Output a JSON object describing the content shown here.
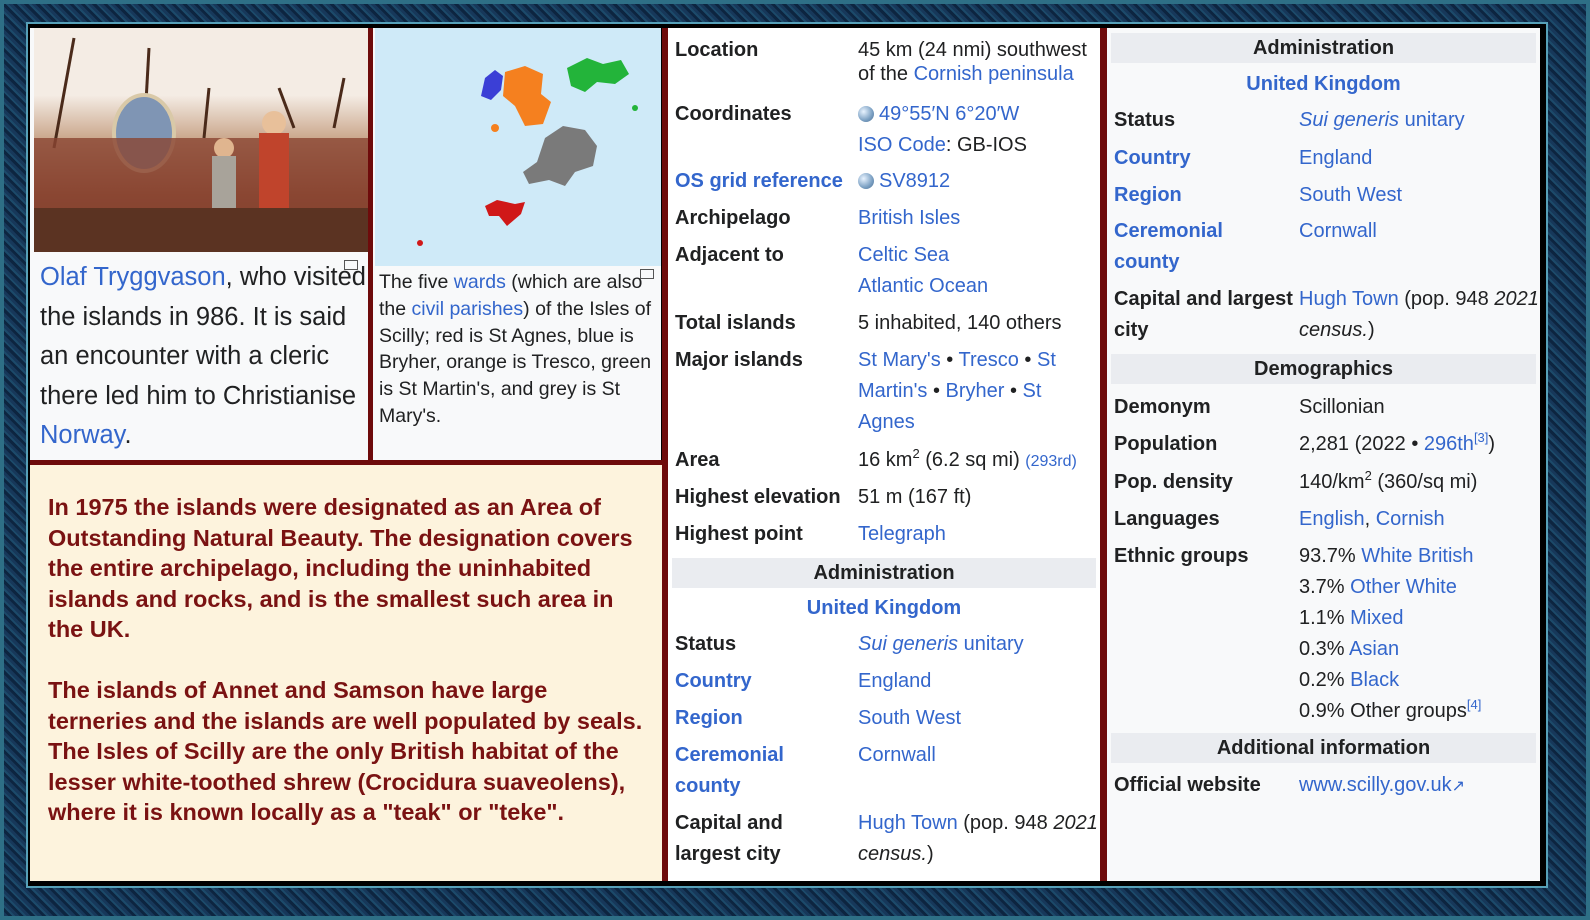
{
  "caption_left": [
    {
      "t": "Olaf Tryggvason",
      "link": true
    },
    {
      "t": ", who visited the islands in 986. It is said an encounter with a cleric there led him to Christianise "
    },
    {
      "t": "Norway",
      "link": true
    },
    {
      "t": "."
    }
  ],
  "caption_map": [
    {
      "t": "The five "
    },
    {
      "t": "wards",
      "link": true
    },
    {
      "t": " (which are also the "
    },
    {
      "t": "civil parishes",
      "link": true
    },
    {
      "t": ") of the Isles of Scilly; red is St Agnes, blue is Bryher, orange is Tresco, green is St Martin's, and grey is St Mary's."
    }
  ],
  "text_box": {
    "paragraphs": [
      "In 1975 the islands were designated as an Area of Outstanding Natural Beauty. The designation covers the entire archipelago, including the uninhabited islands and rocks, and is the smallest such area in the UK.",
      "The islands of Annet and Samson have large terneries and the islands are well populated by seals. The Isles of Scilly are the only British habitat of the lesser white-toothed shrew (Crocidura suaveolens), where it is known locally as a \"teak\" or \"teke\"."
    ]
  },
  "colors": {
    "link": "#3366cc",
    "text_box_text": "#7a1212",
    "text_box_bg": "#fdf3dd",
    "divider": "#6e0b0b",
    "header_bg": "#eaecf0"
  },
  "infobox_middle": [
    {
      "label": "Location",
      "value": [
        {
          "t": "45 km (24 nmi) southwest"
        },
        {
          "br": 1
        },
        {
          "t": "of the "
        },
        {
          "t": "Cornish peninsula",
          "link": true
        }
      ]
    },
    {
      "label": "Coordinates",
      "value": [
        {
          "icon": "globe-icon"
        },
        {
          "t": "49°55′N 6°20′W",
          "link": true
        },
        {
          "br": 1
        },
        {
          "t": "ISO Code",
          "link": true
        },
        {
          "t": ": GB-IOS"
        }
      ]
    },
    {
      "label": "OS grid reference",
      "label_link": true,
      "value": [
        {
          "icon": "globe-icon"
        },
        {
          "t": "SV8912",
          "link": true
        }
      ]
    },
    {
      "label": "Archipelago",
      "value": [
        {
          "t": "British Isles",
          "link": true
        }
      ]
    },
    {
      "label": "Adjacent to",
      "value": [
        {
          "t": "Celtic Sea",
          "link": true
        },
        {
          "br": 1
        },
        {
          "t": "Atlantic Ocean",
          "link": true
        }
      ]
    },
    {
      "label": "Total islands",
      "value": [
        {
          "t": "5 inhabited, 140 others"
        }
      ]
    },
    {
      "label": "Major islands",
      "value": [
        {
          "t": "St Mary's",
          "link": true
        },
        {
          "t": " • "
        },
        {
          "t": "Tresco",
          "link": true
        },
        {
          "t": " • "
        },
        {
          "t": "St",
          "link": true
        },
        {
          "br": 1
        },
        {
          "t": "Martin's",
          "link": true
        },
        {
          "t": " • "
        },
        {
          "t": "Bryher",
          "link": true
        },
        {
          "t": " • "
        },
        {
          "t": "St",
          "link": true
        },
        {
          "br": 1
        },
        {
          "t": "Agnes",
          "link": true
        }
      ]
    },
    {
      "label": "Area",
      "value": [
        {
          "t": "16 km"
        },
        {
          "sup": "2"
        },
        {
          "t": " (6.2 sq mi) "
        },
        {
          "t": "(293rd)",
          "link": true,
          "small": true
        }
      ]
    },
    {
      "label": "Highest elevation",
      "value": [
        {
          "t": "51 m (167 ft)"
        }
      ]
    },
    {
      "label": "Highest point",
      "value": [
        {
          "t": "Telegraph",
          "link": true
        }
      ]
    },
    {
      "header": "Administration"
    },
    {
      "subheader": "United Kingdom"
    },
    {
      "label": "Status",
      "value": [
        {
          "t": "Sui generis",
          "link": true,
          "i": true
        },
        {
          "t": " unitary",
          "link": true
        }
      ]
    },
    {
      "label": "Country",
      "label_link": true,
      "value": [
        {
          "t": "England",
          "link": true
        }
      ]
    },
    {
      "label": "Region",
      "label_link": true,
      "value": [
        {
          "t": "South West",
          "link": true
        }
      ]
    },
    {
      "label": "Ceremonial county",
      "label_link": true,
      "value": [
        {
          "t": "Cornwall",
          "link": true
        }
      ]
    },
    {
      "label": "Capital and largest city",
      "value": [
        {
          "t": "Hugh Town",
          "link": true
        },
        {
          "t": " (pop. 948 "
        },
        {
          "t": "2021",
          "i": true
        },
        {
          "br": 1
        },
        {
          "t": "census.",
          "i": true
        },
        {
          "t": ")"
        }
      ]
    }
  ],
  "infobox_right": [
    {
      "header": "Administration"
    },
    {
      "subheader": "United Kingdom"
    },
    {
      "label": "Status",
      "value": [
        {
          "t": "Sui generis",
          "link": true,
          "i": true
        },
        {
          "t": " unitary",
          "link": true
        }
      ]
    },
    {
      "label": "Country",
      "label_link": true,
      "value": [
        {
          "t": "England",
          "link": true
        }
      ]
    },
    {
      "label": "Region",
      "label_link": true,
      "value": [
        {
          "t": "South West",
          "link": true
        }
      ]
    },
    {
      "label": "Ceremonial county",
      "label_link": true,
      "value": [
        {
          "t": "Cornwall",
          "link": true
        }
      ]
    },
    {
      "label": "Capital and largest city",
      "value": [
        {
          "t": "Hugh Town",
          "link": true
        },
        {
          "t": " (pop. 948 "
        },
        {
          "t": "2021",
          "i": true
        },
        {
          "br": 1
        },
        {
          "t": "census.",
          "i": true
        },
        {
          "t": ")"
        }
      ]
    },
    {
      "header": "Demographics"
    },
    {
      "label": "Demonym",
      "value": [
        {
          "t": "Scillonian"
        }
      ]
    },
    {
      "label": "Population",
      "value": [
        {
          "t": "2,281 (2022 • "
        },
        {
          "t": "296th",
          "link": true
        },
        {
          "sup": "[3]",
          "link": true
        },
        {
          "t": ")"
        }
      ]
    },
    {
      "label": "Pop. density",
      "value": [
        {
          "t": "140/km"
        },
        {
          "sup": "2"
        },
        {
          "t": " (360/sq mi)"
        }
      ]
    },
    {
      "label": "Languages",
      "value": [
        {
          "t": "English",
          "link": true
        },
        {
          "t": ", "
        },
        {
          "t": "Cornish",
          "link": true
        }
      ]
    },
    {
      "label": "Ethnic groups",
      "value": [
        {
          "t": "93.7% "
        },
        {
          "t": "White British",
          "link": true
        },
        {
          "br": 1
        },
        {
          "t": "3.7% "
        },
        {
          "t": "Other White",
          "link": true
        },
        {
          "br": 1
        },
        {
          "t": "1.1% "
        },
        {
          "t": "Mixed",
          "link": true
        },
        {
          "br": 1
        },
        {
          "t": "0.3% "
        },
        {
          "t": "Asian",
          "link": true
        },
        {
          "br": 1
        },
        {
          "t": "0.2% "
        },
        {
          "t": "Black",
          "link": true
        },
        {
          "br": 1
        },
        {
          "t": "0.9% Other groups"
        },
        {
          "sup": "[4]",
          "link": true
        }
      ]
    },
    {
      "header": "Additional information"
    },
    {
      "label": "Official website",
      "value": [
        {
          "t": "www.scilly.gov.uk",
          "link": true
        },
        {
          "icon": "external-link-icon"
        }
      ]
    }
  ]
}
